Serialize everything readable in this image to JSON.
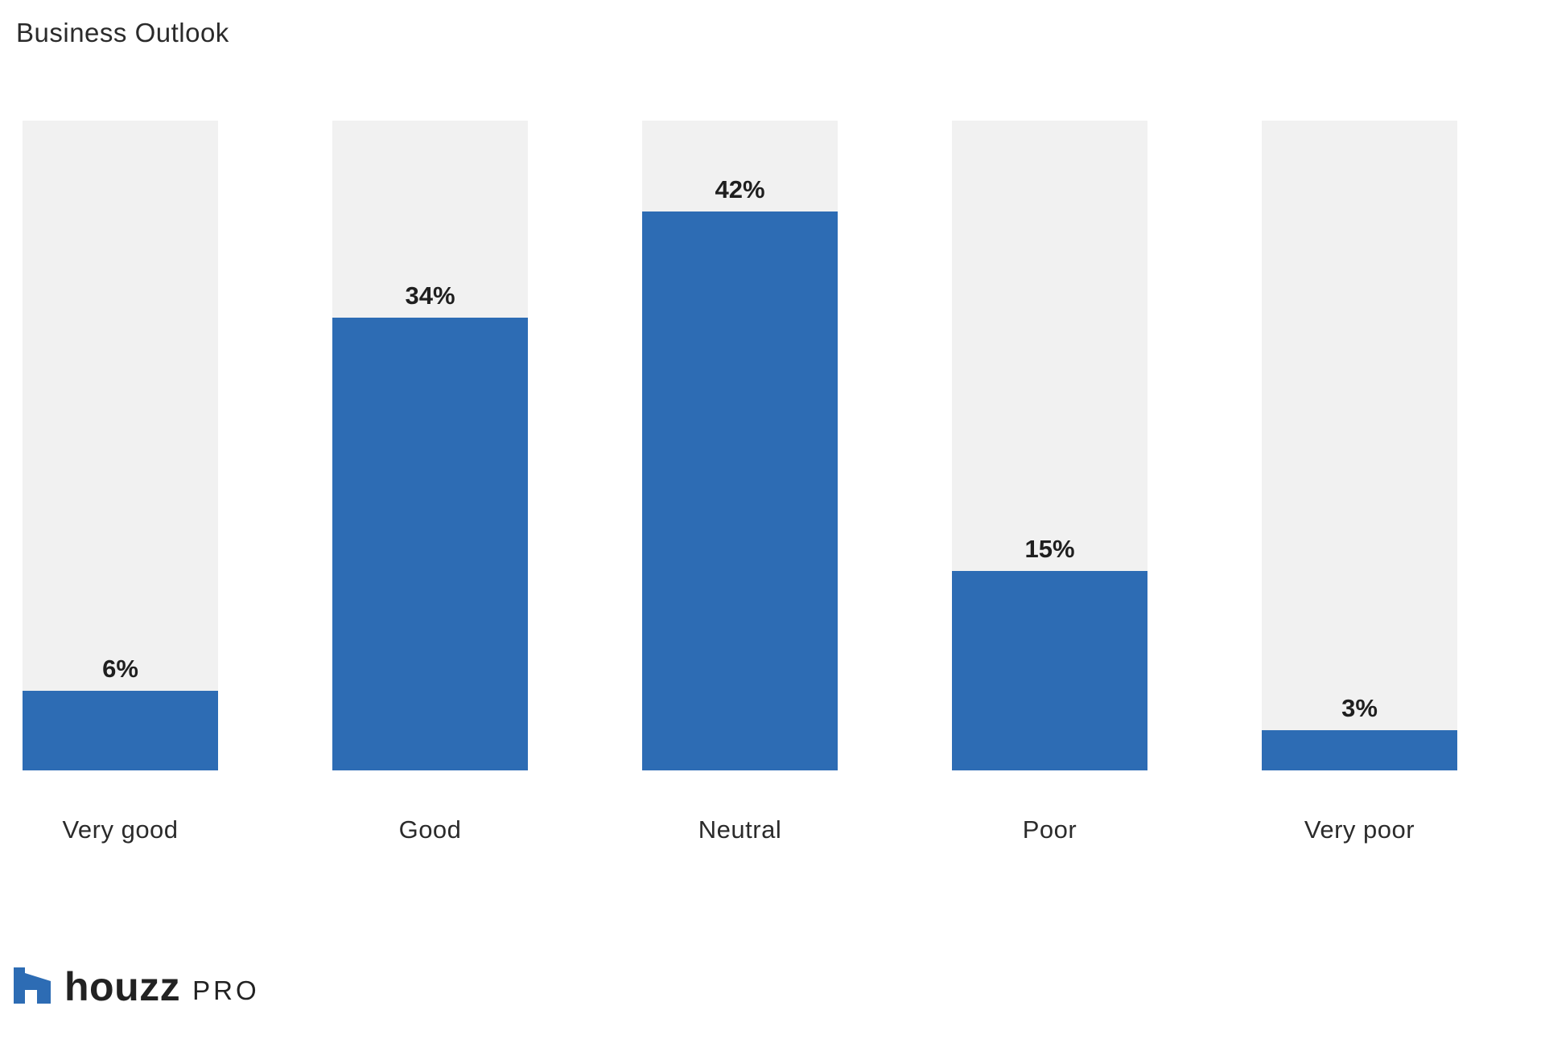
{
  "chart_data": {
    "type": "bar",
    "title": "Business Outlook",
    "categories": [
      "Very good",
      "Good",
      "Neutral",
      "Poor",
      "Very poor"
    ],
    "values": [
      6,
      34,
      42,
      15,
      3
    ],
    "value_labels": [
      "6%",
      "34%",
      "42%",
      "15%",
      "3%"
    ],
    "unit": "%",
    "xlabel": "",
    "ylabel": "",
    "ylim": [
      0,
      48.8
    ],
    "grid": false,
    "legend": "none",
    "bar_color": "#2d6cb4",
    "track_color": "#f1f1f1",
    "layout": "vertical bars on full-height light-gray tracks, value labels above fills, category labels below"
  },
  "footer": {
    "brand": "houzz",
    "suffix": "PRO",
    "logo_icon": "houzz-house-icon",
    "logo_color": "#2d6cb4",
    "text_color": "#222222"
  },
  "colors": {
    "background": "#ffffff",
    "bar_fill": "#2d6cb4",
    "bar_track": "#f1f1f1",
    "title_text": "#2b2b2b",
    "value_text": "#1f1f1f",
    "category_text": "#2b2b2b"
  }
}
